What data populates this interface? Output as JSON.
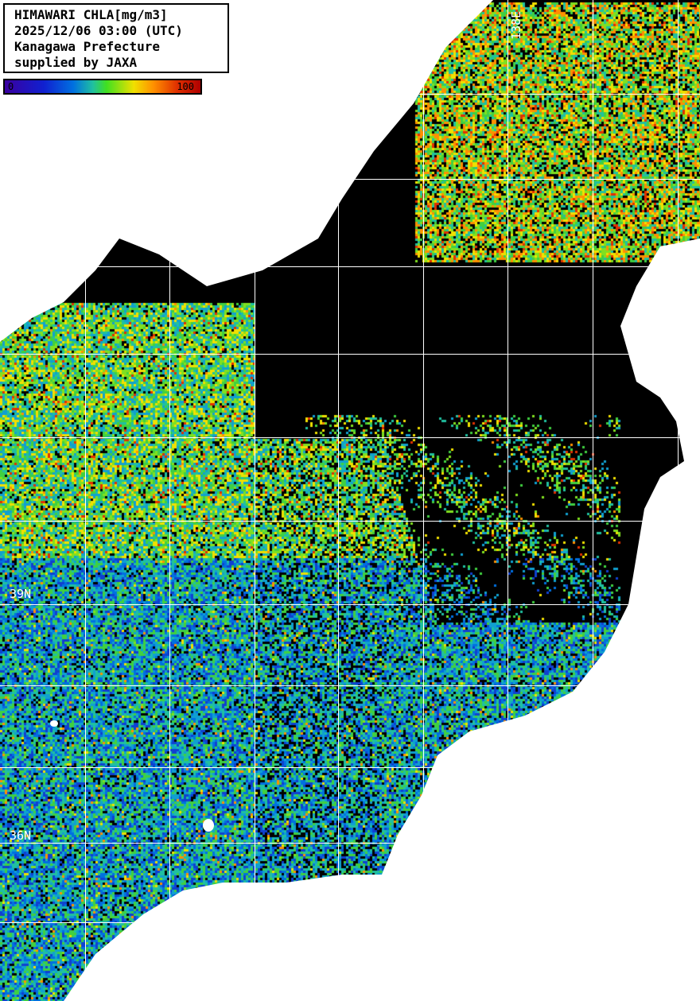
{
  "legend": {
    "lines": [
      "HIMAWARI CHLA[mg/m3]",
      "2025/12/06 03:00 (UTC)",
      "Kanagawa Prefecture",
      "supplied by JAXA"
    ]
  },
  "colorbar": {
    "min_label": "0",
    "max_label": "100",
    "colors": [
      "#3a00a0",
      "#1020d0",
      "#0070e0",
      "#20c0a0",
      "#40e020",
      "#f0e000",
      "#ff9000",
      "#e03000",
      "#b00000"
    ]
  },
  "grid_labels": {
    "lon": "138E",
    "lat_upper": "39N",
    "lat_lower": "36N"
  },
  "colors": {
    "land": "#ffffff",
    "no_data": "#000000",
    "grid": "#ffffff"
  }
}
